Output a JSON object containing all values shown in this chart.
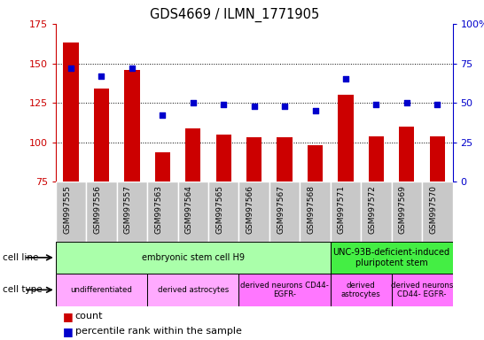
{
  "title": "GDS4669 / ILMN_1771905",
  "samples": [
    "GSM997555",
    "GSM997556",
    "GSM997557",
    "GSM997563",
    "GSM997564",
    "GSM997565",
    "GSM997566",
    "GSM997567",
    "GSM997568",
    "GSM997571",
    "GSM997572",
    "GSM997569",
    "GSM997570"
  ],
  "count_values": [
    163,
    134,
    146,
    94,
    109,
    105,
    103,
    103,
    98,
    130,
    104,
    110,
    104
  ],
  "percentile_values": [
    72,
    67,
    72,
    42,
    50,
    49,
    48,
    48,
    45,
    65,
    49,
    50,
    49
  ],
  "ylim_left": [
    75,
    175
  ],
  "ylim_right": [
    0,
    100
  ],
  "yticks_left": [
    75,
    100,
    125,
    150,
    175
  ],
  "yticks_right": [
    0,
    25,
    50,
    75,
    100
  ],
  "ytick_labels_right": [
    "0",
    "25",
    "50",
    "75",
    "100%"
  ],
  "bar_color": "#cc0000",
  "dot_color": "#0000cc",
  "bar_bottom": 75,
  "cell_line_groups": [
    {
      "label": "embryonic stem cell H9",
      "start": 0,
      "end": 9,
      "color": "#aaffaa"
    },
    {
      "label": "UNC-93B-deficient-induced\npluripotent stem",
      "start": 9,
      "end": 13,
      "color": "#44ee44"
    }
  ],
  "cell_type_groups": [
    {
      "label": "undifferentiated",
      "start": 0,
      "end": 3,
      "color": "#ffaaff"
    },
    {
      "label": "derived astrocytes",
      "start": 3,
      "end": 6,
      "color": "#ffaaff"
    },
    {
      "label": "derived neurons CD44-\nEGFR-",
      "start": 6,
      "end": 9,
      "color": "#ff77ff"
    },
    {
      "label": "derived\nastrocytes",
      "start": 9,
      "end": 11,
      "color": "#ff77ff"
    },
    {
      "label": "derived neurons\nCD44- EGFR-",
      "start": 11,
      "end": 13,
      "color": "#ff77ff"
    }
  ],
  "row_label_cell_line": "cell line",
  "row_label_cell_type": "cell type",
  "legend_count_label": "count",
  "legend_percentile_label": "percentile rank within the sample",
  "background_color": "#ffffff",
  "tick_label_color_left": "#cc0000",
  "tick_label_color_right": "#0000cc",
  "xtick_bg_color": "#c8c8c8",
  "xtick_border_color": "#ffffff"
}
